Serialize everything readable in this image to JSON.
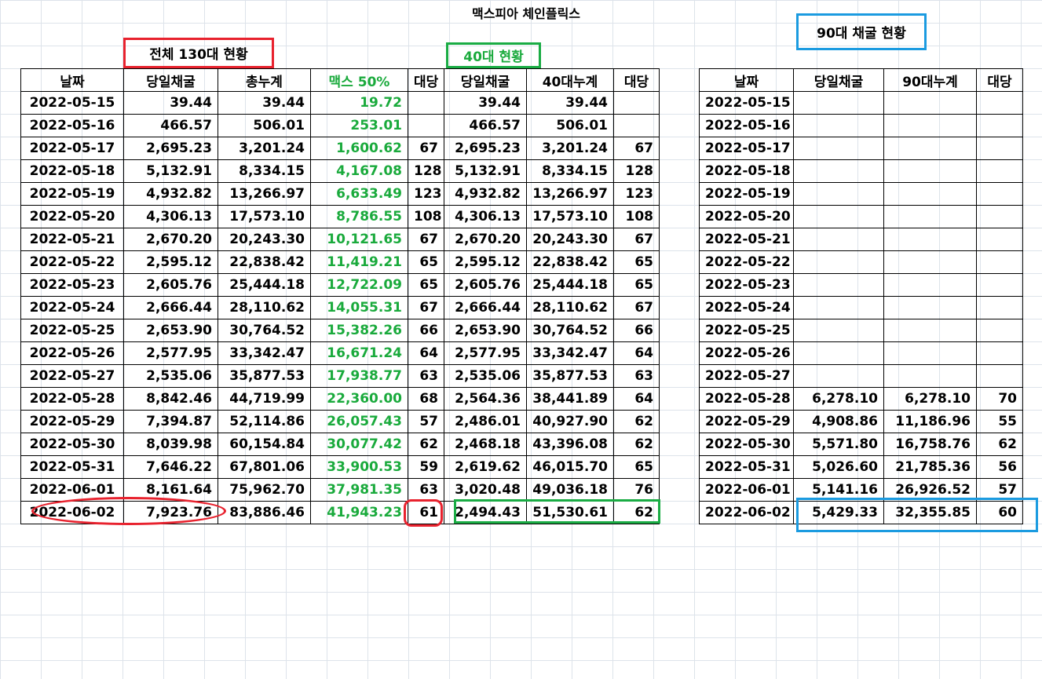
{
  "title": "맥스피아 체인플릭스",
  "sections": {
    "total": "전체 130대 현황",
    "unit40": "40대 현황",
    "unit90": "90대 채굴 현황"
  },
  "left_headers": [
    "날짜",
    "당일채굴",
    "총누계",
    "맥스 50%",
    "대당",
    "당일채굴",
    "40대누계",
    "대당"
  ],
  "right_headers": [
    "날짜",
    "당일채굴",
    "90대누계",
    "대당"
  ],
  "left_rows": [
    [
      "2022-05-15",
      "39.44",
      "39.44",
      "19.72",
      "",
      "39.44",
      "39.44",
      ""
    ],
    [
      "2022-05-16",
      "466.57",
      "506.01",
      "253.01",
      "",
      "466.57",
      "506.01",
      ""
    ],
    [
      "2022-05-17",
      "2,695.23",
      "3,201.24",
      "1,600.62",
      "67",
      "2,695.23",
      "3,201.24",
      "67"
    ],
    [
      "2022-05-18",
      "5,132.91",
      "8,334.15",
      "4,167.08",
      "128",
      "5,132.91",
      "8,334.15",
      "128"
    ],
    [
      "2022-05-19",
      "4,932.82",
      "13,266.97",
      "6,633.49",
      "123",
      "4,932.82",
      "13,266.97",
      "123"
    ],
    [
      "2022-05-20",
      "4,306.13",
      "17,573.10",
      "8,786.55",
      "108",
      "4,306.13",
      "17,573.10",
      "108"
    ],
    [
      "2022-05-21",
      "2,670.20",
      "20,243.30",
      "10,121.65",
      "67",
      "2,670.20",
      "20,243.30",
      "67"
    ],
    [
      "2022-05-22",
      "2,595.12",
      "22,838.42",
      "11,419.21",
      "65",
      "2,595.12",
      "22,838.42",
      "65"
    ],
    [
      "2022-05-23",
      "2,605.76",
      "25,444.18",
      "12,722.09",
      "65",
      "2,605.76",
      "25,444.18",
      "65"
    ],
    [
      "2022-05-24",
      "2,666.44",
      "28,110.62",
      "14,055.31",
      "67",
      "2,666.44",
      "28,110.62",
      "67"
    ],
    [
      "2022-05-25",
      "2,653.90",
      "30,764.52",
      "15,382.26",
      "66",
      "2,653.90",
      "30,764.52",
      "66"
    ],
    [
      "2022-05-26",
      "2,577.95",
      "33,342.47",
      "16,671.24",
      "64",
      "2,577.95",
      "33,342.47",
      "64"
    ],
    [
      "2022-05-27",
      "2,535.06",
      "35,877.53",
      "17,938.77",
      "63",
      "2,535.06",
      "35,877.53",
      "63"
    ],
    [
      "2022-05-28",
      "8,842.46",
      "44,719.99",
      "22,360.00",
      "68",
      "2,564.36",
      "38,441.89",
      "64"
    ],
    [
      "2022-05-29",
      "7,394.87",
      "52,114.86",
      "26,057.43",
      "57",
      "2,486.01",
      "40,927.90",
      "62"
    ],
    [
      "2022-05-30",
      "8,039.98",
      "60,154.84",
      "30,077.42",
      "62",
      "2,468.18",
      "43,396.08",
      "62"
    ],
    [
      "2022-05-31",
      "7,646.22",
      "67,801.06",
      "33,900.53",
      "59",
      "2,619.62",
      "46,015.70",
      "65"
    ],
    [
      "2022-06-01",
      "8,161.64",
      "75,962.70",
      "37,981.35",
      "63",
      "3,020.48",
      "49,036.18",
      "76"
    ],
    [
      "2022-06-02",
      "7,923.76",
      "83,886.46",
      "41,943.23",
      "61",
      "2,494.43",
      "51,530.61",
      "62"
    ]
  ],
  "right_rows": [
    [
      "2022-05-15",
      "",
      "",
      ""
    ],
    [
      "2022-05-16",
      "",
      "",
      ""
    ],
    [
      "2022-05-17",
      "",
      "",
      ""
    ],
    [
      "2022-05-18",
      "",
      "",
      ""
    ],
    [
      "2022-05-19",
      "",
      "",
      ""
    ],
    [
      "2022-05-20",
      "",
      "",
      ""
    ],
    [
      "2022-05-21",
      "",
      "",
      ""
    ],
    [
      "2022-05-22",
      "",
      "",
      ""
    ],
    [
      "2022-05-23",
      "",
      "",
      ""
    ],
    [
      "2022-05-24",
      "",
      "",
      ""
    ],
    [
      "2022-05-25",
      "",
      "",
      ""
    ],
    [
      "2022-05-26",
      "",
      "",
      ""
    ],
    [
      "2022-05-27",
      "",
      "",
      ""
    ],
    [
      "2022-05-28",
      "6,278.10",
      "6,278.10",
      "70"
    ],
    [
      "2022-05-29",
      "4,908.86",
      "11,186.96",
      "55"
    ],
    [
      "2022-05-30",
      "5,571.80",
      "16,758.76",
      "62"
    ],
    [
      "2022-05-31",
      "5,026.60",
      "21,785.36",
      "56"
    ],
    [
      "2022-06-01",
      "5,141.16",
      "26,926.52",
      "57"
    ],
    [
      "2022-06-02",
      "5,429.33",
      "32,355.85",
      "60"
    ]
  ],
  "colors": {
    "accent_green_text": "#1aaa3c",
    "highlight_red": "#e8222e",
    "highlight_green": "#1aac44",
    "highlight_blue": "#1b9be0",
    "gridline": "#dde3ea"
  }
}
